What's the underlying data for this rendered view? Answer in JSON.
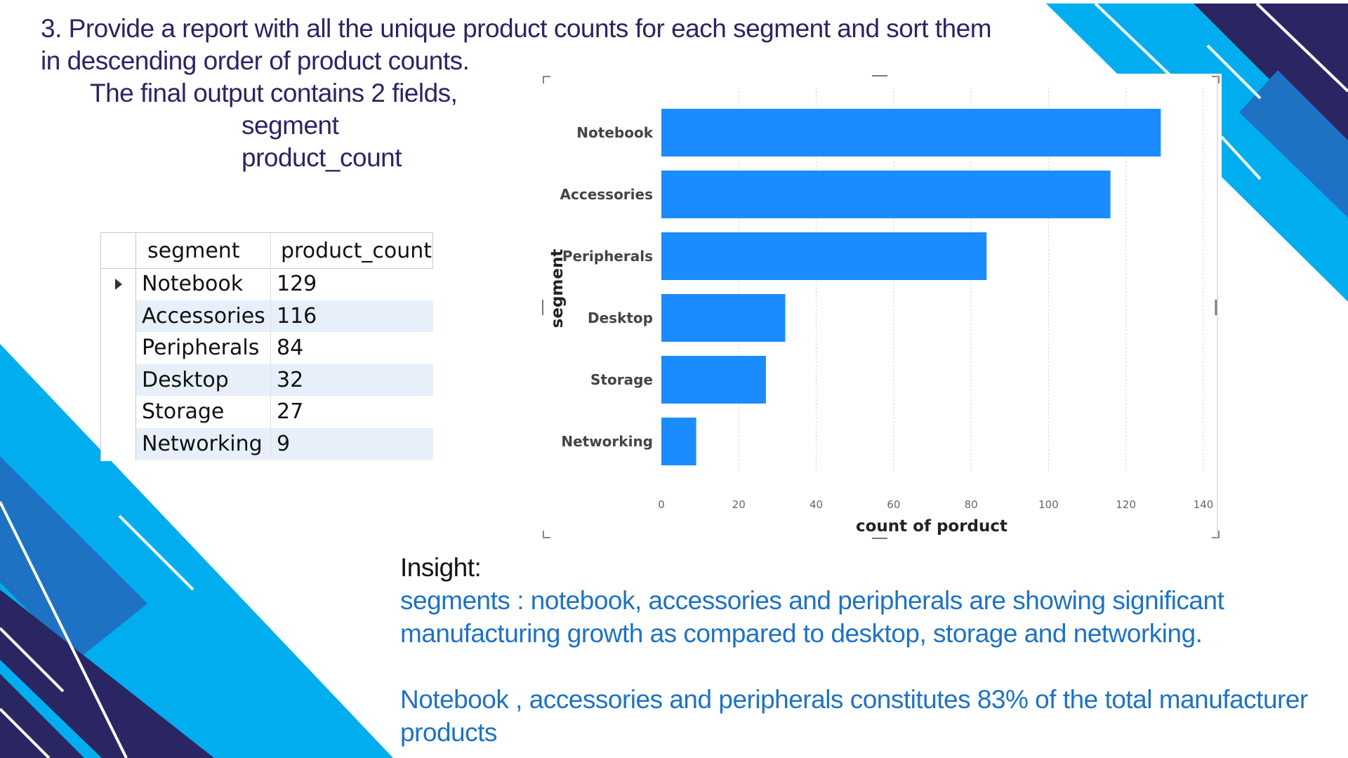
{
  "question": {
    "lines": [
      "3. Provide a report with all the unique product counts for each segment and sort them",
      "in descending order of product counts.",
      "The final output contains 2 fields,",
      "segment",
      "product_count"
    ]
  },
  "table": {
    "columns": [
      "segment",
      "product_count"
    ],
    "rows": [
      {
        "segment": "Notebook",
        "product_count": "129"
      },
      {
        "segment": "Accessories",
        "product_count": "116"
      },
      {
        "segment": "Peripherals",
        "product_count": "84"
      },
      {
        "segment": "Desktop",
        "product_count": "32"
      },
      {
        "segment": "Storage",
        "product_count": "27"
      },
      {
        "segment": "Networking",
        "product_count": "9"
      }
    ]
  },
  "chart_data": {
    "type": "bar",
    "orientation": "horizontal",
    "categories": [
      "Notebook",
      "Accessories",
      "Peripherals",
      "Desktop",
      "Storage",
      "Networking"
    ],
    "values": [
      129,
      116,
      84,
      32,
      27,
      9
    ],
    "xlabel": "count of porduct",
    "ylabel": "segment",
    "xlim": [
      0,
      140
    ],
    "xticks": [
      0,
      20,
      40,
      60,
      80,
      100,
      120,
      140
    ],
    "grid": "vertical dotted",
    "bar_color": "#1a8cff"
  },
  "insight": {
    "title": "Insight:",
    "paragraph1": "segments : notebook, accessories and peripherals are showing significant manufacturing growth as compared to desktop, storage and networking.",
    "paragraph2": "Notebook , accessories and peripherals constitutes 83% of the total manufacturer products"
  },
  "colors": {
    "navy": "#2a2563",
    "bright_blue": "#00aeef",
    "mid_blue": "#1e72c4",
    "insight_text": "#1e72c4"
  }
}
